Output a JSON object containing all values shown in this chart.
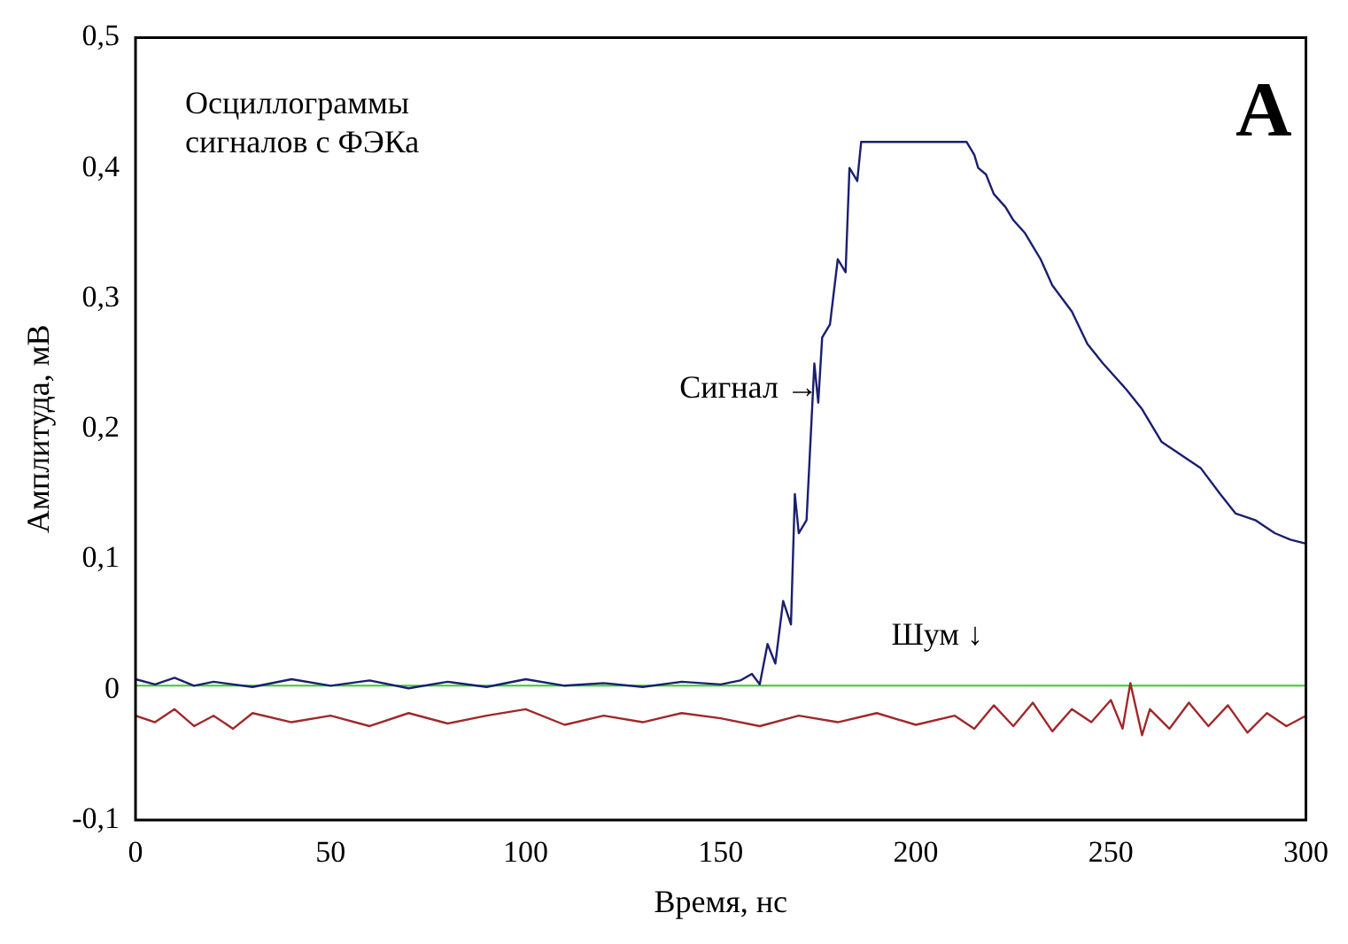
{
  "chart_data": {
    "type": "line",
    "xlabel": "Время, нс",
    "ylabel": "Амплитуда, мВ",
    "xlim": [
      0,
      300
    ],
    "xticks": [
      0,
      50,
      100,
      150,
      200,
      250,
      300
    ],
    "ylim": [
      -0.1,
      0.5
    ],
    "yticks": [
      {
        "value": -0.1,
        "label": "-0,1"
      },
      {
        "value": 0,
        "label": "0"
      },
      {
        "value": 0.1,
        "label": "0,1"
      },
      {
        "value": 0.2,
        "label": "0,2"
      },
      {
        "value": 0.3,
        "label": "0,3"
      },
      {
        "value": 0.4,
        "label": "0,4"
      },
      {
        "value": 0.5,
        "label": "0,5"
      }
    ],
    "grid": false,
    "legend": false,
    "marker": "none",
    "line_style": "solid",
    "ref_lines": [
      {
        "axis": "y",
        "value": 0.003,
        "color": "#33cc33"
      }
    ],
    "series": [
      {
        "color": "#1a1f6e",
        "x": [
          0,
          5,
          10,
          15,
          20,
          30,
          40,
          50,
          60,
          70,
          80,
          90,
          100,
          110,
          120,
          130,
          140,
          150,
          155,
          158,
          160,
          162,
          164,
          166,
          168,
          169,
          170,
          172,
          174,
          175,
          176,
          178,
          180,
          182,
          183,
          185,
          186,
          190,
          200,
          210,
          213,
          215,
          216,
          218,
          220,
          223,
          225,
          228,
          230,
          232,
          235,
          240,
          244,
          248,
          254,
          258,
          263,
          268,
          273,
          278,
          282,
          287,
          292,
          296,
          300
        ],
        "values": [
          0.008,
          0.004,
          0.009,
          0.003,
          0.006,
          0.002,
          0.008,
          0.003,
          0.007,
          0.001,
          0.006,
          0.002,
          0.008,
          0.003,
          0.005,
          0.002,
          0.006,
          0.004,
          0.007,
          0.012,
          0.004,
          0.035,
          0.02,
          0.068,
          0.05,
          0.15,
          0.12,
          0.13,
          0.25,
          0.22,
          0.27,
          0.28,
          0.33,
          0.32,
          0.4,
          0.39,
          0.42,
          0.42,
          0.42,
          0.42,
          0.42,
          0.41,
          0.4,
          0.395,
          0.38,
          0.37,
          0.36,
          0.35,
          0.34,
          0.33,
          0.31,
          0.29,
          0.265,
          0.25,
          0.23,
          0.215,
          0.19,
          0.18,
          0.17,
          0.15,
          0.135,
          0.13,
          0.12,
          0.115,
          0.112
        ]
      },
      {
        "color": "#a0282a",
        "x": [
          0,
          5,
          10,
          15,
          20,
          25,
          30,
          40,
          50,
          60,
          70,
          80,
          90,
          100,
          110,
          120,
          130,
          140,
          150,
          160,
          170,
          180,
          190,
          200,
          210,
          215,
          220,
          225,
          230,
          235,
          240,
          245,
          250,
          253,
          255,
          258,
          260,
          265,
          270,
          275,
          280,
          285,
          290,
          295,
          300
        ],
        "values": [
          -0.02,
          -0.025,
          -0.015,
          -0.028,
          -0.02,
          -0.03,
          -0.018,
          -0.025,
          -0.02,
          -0.028,
          -0.018,
          -0.026,
          -0.02,
          -0.015,
          -0.027,
          -0.02,
          -0.025,
          -0.018,
          -0.022,
          -0.028,
          -0.02,
          -0.025,
          -0.018,
          -0.027,
          -0.02,
          -0.03,
          -0.012,
          -0.028,
          -0.01,
          -0.032,
          -0.015,
          -0.025,
          -0.008,
          -0.03,
          0.005,
          -0.035,
          -0.015,
          -0.03,
          -0.01,
          -0.028,
          -0.012,
          -0.033,
          -0.018,
          -0.028,
          -0.02
        ]
      }
    ],
    "annotations": [
      "Осциллограммы\nсигналов с ФЭКа",
      "A",
      {
        "text": "Сигнал →",
        "x": 175,
        "y": 0.23
      },
      "Шум ↓"
    ]
  }
}
